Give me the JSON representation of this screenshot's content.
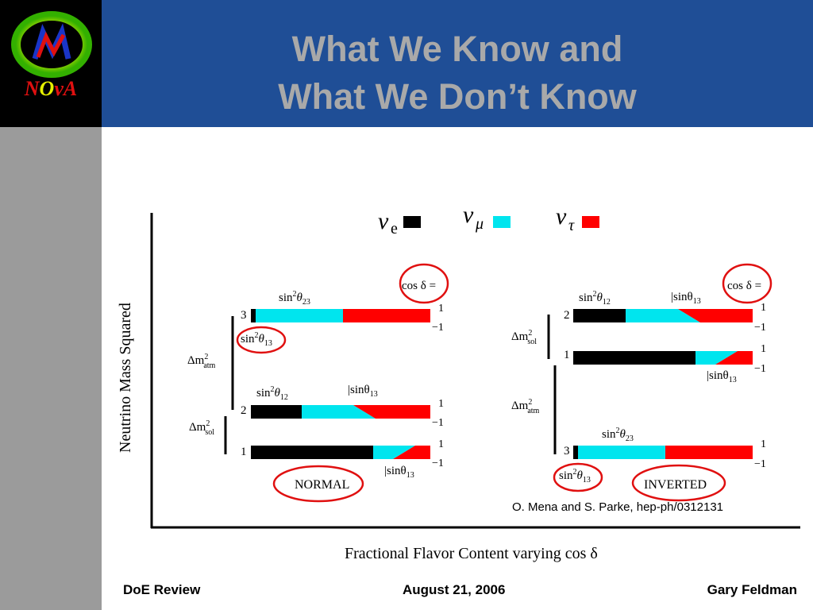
{
  "logo": {
    "text": "NOvA"
  },
  "title": {
    "line1": "What We Know and",
    "line2": "What We Don’t Know"
  },
  "legend": [
    {
      "sym": "ν",
      "sub": "e",
      "color": "#000000"
    },
    {
      "sym": "ν",
      "sub": "μ",
      "color": "#00e5ee"
    },
    {
      "sym": "ν",
      "sub": "τ",
      "color": "#ff0000"
    }
  ],
  "labels": {
    "y_axis": "Neutrino Mass Squared",
    "x_axis": "Fractional Flavor Content varying cos δ",
    "normal": "NORMAL",
    "inverted": "INVERTED",
    "cos_delta": "cos δ =",
    "plus_one": "1",
    "minus_one": "−1",
    "dm_atm_base": "Δm",
    "dm_atm_sub": "atm",
    "dm_sol_sub": "sol",
    "sq": "2",
    "sin2_23": "sin",
    "sub23": "23",
    "sub12": "12",
    "sub13": "13",
    "theta": "θ",
    "abs_sin13": "|sinθ",
    "level3": "3",
    "level2": "2",
    "level1": "1"
  },
  "citation": "O. Mena and S. Parke, hep-ph/0312131",
  "footer": {
    "left": "DoE Review",
    "center": "August 21, 2006",
    "right": "Gary Feldman"
  }
}
